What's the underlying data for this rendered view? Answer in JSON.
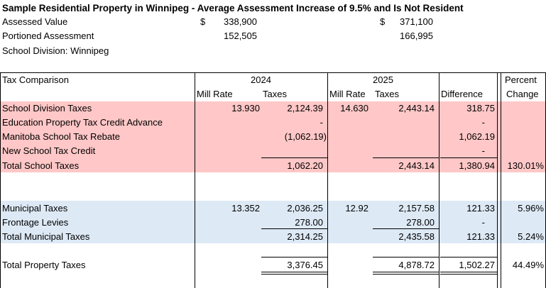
{
  "title": "Sample Residential Property in Winnipeg - Average Assessment Increase of 9.5% and Is Not Resident",
  "header": {
    "assessed_label": "Assessed Value",
    "portioned_label": "Portioned Assessment",
    "division_label": "School Division: Winnipeg",
    "currency": "$",
    "assessed_2024": "338,900",
    "assessed_2025": "371,100",
    "portioned_2024": "152,505",
    "portioned_2025": "166,995"
  },
  "table": {
    "col_tax_comparison": "Tax Comparison",
    "year_2024": "2024",
    "year_2025": "2025",
    "mill_rate": "Mill Rate",
    "taxes": "Taxes",
    "difference": "Difference",
    "percent_1": "Percent",
    "percent_2": "Change"
  },
  "school": [
    {
      "label": "School Division Taxes",
      "mill24": "13.930",
      "tax24": "2,124.39",
      "mill25": "14.630",
      "tax25": "2,443.14",
      "diff": "318.75",
      "pct": ""
    },
    {
      "label": "Education Property Tax Credit Advance",
      "mill24": "",
      "tax24": "-",
      "mill25": "",
      "tax25": "",
      "diff": "-",
      "pct": ""
    },
    {
      "label": "Manitoba School Tax Rebate",
      "mill24": "",
      "tax24": "(1,062.19)",
      "mill25": "",
      "tax25": "",
      "diff": "1,062.19",
      "pct": ""
    },
    {
      "label": "New School Tax Credit",
      "mill24": "",
      "tax24": "",
      "mill25": "",
      "tax25": "",
      "diff": "-",
      "pct": ""
    },
    {
      "label": "Total School Taxes",
      "mill24": "",
      "tax24": "1,062.20",
      "mill25": "",
      "tax25": "2,443.14",
      "diff": "1,380.94",
      "pct": "130.01%"
    }
  ],
  "municipal": [
    {
      "label": "Municipal Taxes",
      "mill24": "13.352",
      "tax24": "2,036.25",
      "mill25": "12.92",
      "tax25": "2,157.58",
      "diff": "121.33",
      "pct": "5.96%"
    },
    {
      "label": "Frontage Levies",
      "mill24": "",
      "tax24": "278.00",
      "mill25": "",
      "tax25": "278.00",
      "diff": "-",
      "pct": ""
    },
    {
      "label": "Total Municipal Taxes",
      "mill24": "",
      "tax24": "2,314.25",
      "mill25": "",
      "tax25": "2,435.58",
      "diff": "121.33",
      "pct": "5.24%"
    }
  ],
  "total": {
    "label": "Total Property Taxes",
    "tax24": "3,376.45",
    "tax25": "4,878.72",
    "diff": "1,502.27",
    "pct": "44.49%"
  }
}
